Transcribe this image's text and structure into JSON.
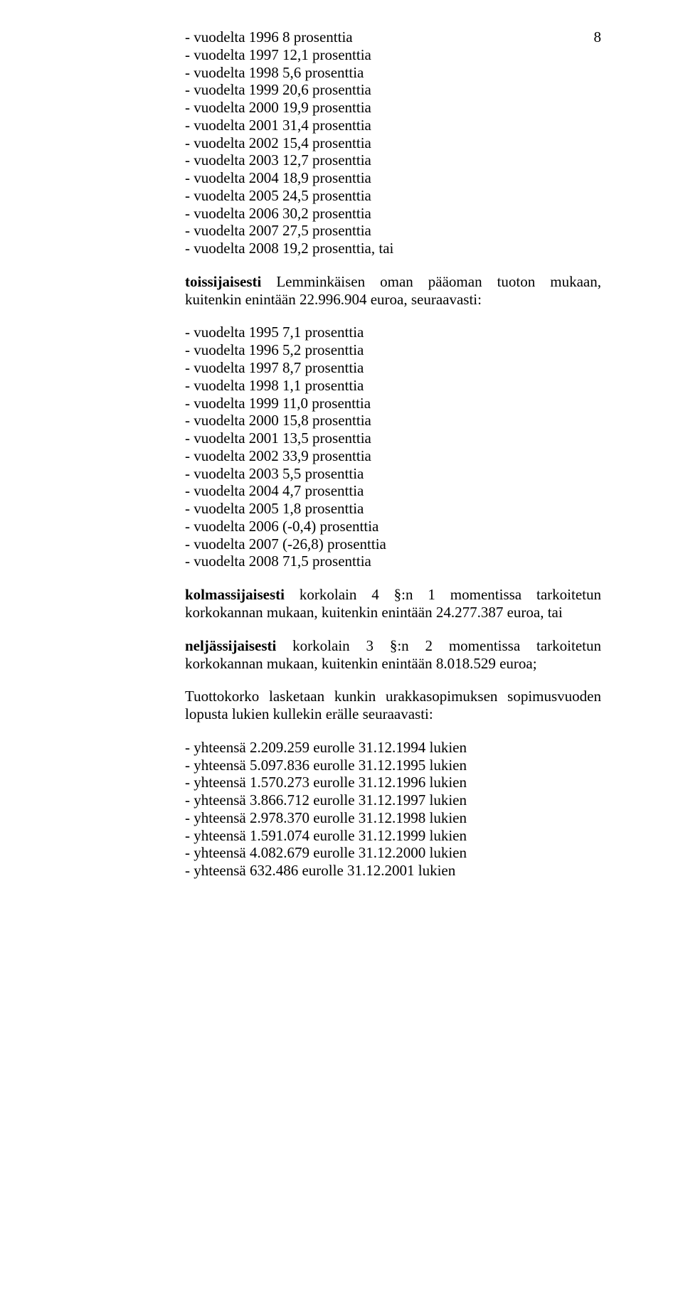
{
  "pageNumber": "8",
  "listA": [
    "- vuodelta 1996 8 prosenttia",
    "- vuodelta 1997 12,1 prosenttia",
    "- vuodelta 1998 5,6 prosenttia",
    "- vuodelta 1999 20,6 prosenttia",
    "- vuodelta 2000 19,9 prosenttia",
    "- vuodelta 2001 31,4 prosenttia",
    "- vuodelta 2002 15,4 prosenttia",
    "- vuodelta 2003 12,7 prosenttia",
    "- vuodelta 2004 18,9 prosenttia",
    "- vuodelta 2005 24,5 prosenttia",
    "- vuodelta 2006 30,2 prosenttia",
    "- vuodelta 2007 27,5 prosenttia",
    "- vuodelta 2008 19,2 prosenttia, tai"
  ],
  "paraB_lead": "toissijaisesti",
  "paraB_rest": " Lemminkäisen oman pääoman tuoton mukaan, kuitenkin enintään 22.996.904 euroa, seuraavasti:",
  "listC": [
    "- vuodelta 1995 7,1 prosenttia",
    "- vuodelta 1996 5,2 prosenttia",
    "- vuodelta 1997 8,7 prosenttia",
    "- vuodelta 1998 1,1 prosenttia",
    "- vuodelta 1999 11,0 prosenttia",
    "- vuodelta 2000 15,8 prosenttia",
    "- vuodelta 2001 13,5 prosenttia",
    "- vuodelta 2002 33,9 prosenttia",
    "- vuodelta 2003 5,5 prosenttia",
    "- vuodelta 2004 4,7 prosenttia",
    "- vuodelta 2005 1,8 prosenttia",
    "- vuodelta 2006 (-0,4) prosenttia",
    "- vuodelta 2007 (-26,8) prosenttia",
    "- vuodelta 2008 71,5 prosenttia"
  ],
  "paraD_lead": "kolmassijaisesti",
  "paraD_rest": " korkolain 4 §:n 1 momentissa tarkoitetun korkokannan mukaan, kuitenkin enintään 24.277.387 euroa, tai",
  "paraE_lead": "neljässijaisesti",
  "paraE_rest": "  korkolain 3 §:n 2 momentissa tarkoitetun korkokannan mukaan, kuitenkin enintään 8.018.529 euroa;",
  "paraF": "Tuottokorko lasketaan kunkin urakkasopimuksen sopimusvuoden lopusta lukien kullekin erälle seuraavasti:",
  "listG": [
    "- yhteensä 2.209.259 eurolle 31.12.1994 lukien",
    "- yhteensä 5.097.836 eurolle 31.12.1995 lukien",
    "- yhteensä 1.570.273 eurolle 31.12.1996 lukien",
    "- yhteensä 3.866.712 eurolle 31.12.1997 lukien",
    "- yhteensä 2.978.370 eurolle 31.12.1998 lukien",
    "- yhteensä 1.591.074 eurolle 31.12.1999 lukien",
    "- yhteensä 4.082.679 eurolle 31.12.2000 lukien",
    "- yhteensä 632.486 eurolle 31.12.2001 lukien"
  ]
}
